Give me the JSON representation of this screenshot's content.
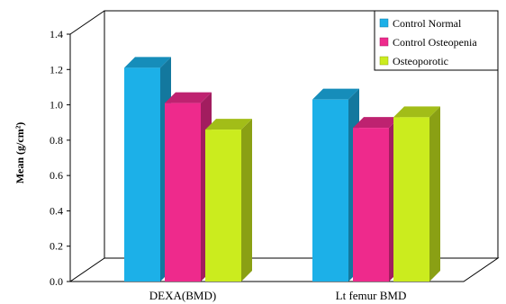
{
  "chart_data": {
    "type": "bar",
    "categories": [
      "DEXA(BMD)",
      "Lt femur BMD"
    ],
    "series": [
      {
        "name": "Control Normal",
        "values": [
          1.21,
          1.03
        ],
        "color": "#1cb0e8"
      },
      {
        "name": "Control Osteopenia",
        "values": [
          1.01,
          0.87
        ],
        "color": "#ee2a8c"
      },
      {
        "name": "Osteoporotic",
        "values": [
          0.86,
          0.93
        ],
        "color": "#cbec1e"
      }
    ],
    "yticks": [
      "0.0",
      "0.2",
      "0.4",
      "0.6",
      "0.8",
      "1.0",
      "1.2",
      "1.4"
    ],
    "ylim": [
      0,
      1.4
    ],
    "ylabel": "Mean (g/cm²)",
    "xlabel": "",
    "grid": false,
    "legend_position": "top-right"
  }
}
